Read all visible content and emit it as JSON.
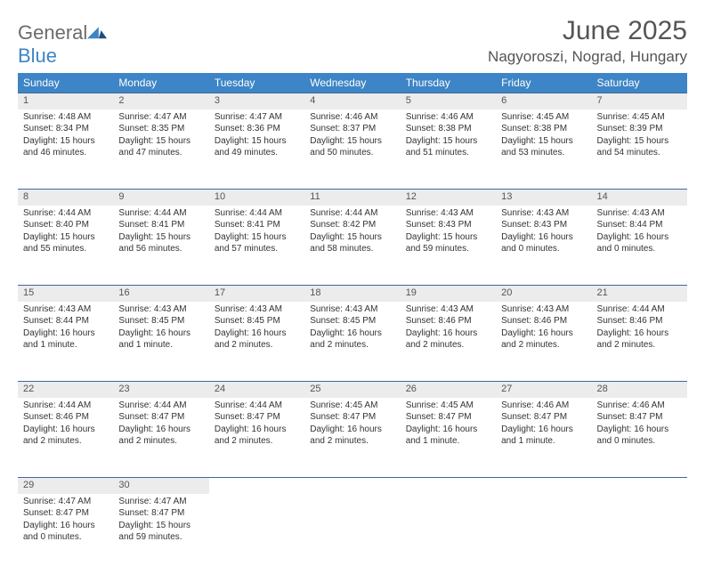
{
  "logo": {
    "line1": "General",
    "line2": "Blue"
  },
  "title": "June 2025",
  "location": "Nagyoroszi, Nograd, Hungary",
  "colors": {
    "header_bg": "#3d85c6",
    "header_text": "#ffffff",
    "daynum_bg": "#ececec",
    "rule": "#3d6a99",
    "text": "#333333",
    "title_text": "#555555"
  },
  "day_headers": [
    "Sunday",
    "Monday",
    "Tuesday",
    "Wednesday",
    "Thursday",
    "Friday",
    "Saturday"
  ],
  "weeks": [
    [
      {
        "n": "1",
        "sr": "Sunrise: 4:48 AM",
        "ss": "Sunset: 8:34 PM",
        "dl": "Daylight: 15 hours and 46 minutes."
      },
      {
        "n": "2",
        "sr": "Sunrise: 4:47 AM",
        "ss": "Sunset: 8:35 PM",
        "dl": "Daylight: 15 hours and 47 minutes."
      },
      {
        "n": "3",
        "sr": "Sunrise: 4:47 AM",
        "ss": "Sunset: 8:36 PM",
        "dl": "Daylight: 15 hours and 49 minutes."
      },
      {
        "n": "4",
        "sr": "Sunrise: 4:46 AM",
        "ss": "Sunset: 8:37 PM",
        "dl": "Daylight: 15 hours and 50 minutes."
      },
      {
        "n": "5",
        "sr": "Sunrise: 4:46 AM",
        "ss": "Sunset: 8:38 PM",
        "dl": "Daylight: 15 hours and 51 minutes."
      },
      {
        "n": "6",
        "sr": "Sunrise: 4:45 AM",
        "ss": "Sunset: 8:38 PM",
        "dl": "Daylight: 15 hours and 53 minutes."
      },
      {
        "n": "7",
        "sr": "Sunrise: 4:45 AM",
        "ss": "Sunset: 8:39 PM",
        "dl": "Daylight: 15 hours and 54 minutes."
      }
    ],
    [
      {
        "n": "8",
        "sr": "Sunrise: 4:44 AM",
        "ss": "Sunset: 8:40 PM",
        "dl": "Daylight: 15 hours and 55 minutes."
      },
      {
        "n": "9",
        "sr": "Sunrise: 4:44 AM",
        "ss": "Sunset: 8:41 PM",
        "dl": "Daylight: 15 hours and 56 minutes."
      },
      {
        "n": "10",
        "sr": "Sunrise: 4:44 AM",
        "ss": "Sunset: 8:41 PM",
        "dl": "Daylight: 15 hours and 57 minutes."
      },
      {
        "n": "11",
        "sr": "Sunrise: 4:44 AM",
        "ss": "Sunset: 8:42 PM",
        "dl": "Daylight: 15 hours and 58 minutes."
      },
      {
        "n": "12",
        "sr": "Sunrise: 4:43 AM",
        "ss": "Sunset: 8:43 PM",
        "dl": "Daylight: 15 hours and 59 minutes."
      },
      {
        "n": "13",
        "sr": "Sunrise: 4:43 AM",
        "ss": "Sunset: 8:43 PM",
        "dl": "Daylight: 16 hours and 0 minutes."
      },
      {
        "n": "14",
        "sr": "Sunrise: 4:43 AM",
        "ss": "Sunset: 8:44 PM",
        "dl": "Daylight: 16 hours and 0 minutes."
      }
    ],
    [
      {
        "n": "15",
        "sr": "Sunrise: 4:43 AM",
        "ss": "Sunset: 8:44 PM",
        "dl": "Daylight: 16 hours and 1 minute."
      },
      {
        "n": "16",
        "sr": "Sunrise: 4:43 AM",
        "ss": "Sunset: 8:45 PM",
        "dl": "Daylight: 16 hours and 1 minute."
      },
      {
        "n": "17",
        "sr": "Sunrise: 4:43 AM",
        "ss": "Sunset: 8:45 PM",
        "dl": "Daylight: 16 hours and 2 minutes."
      },
      {
        "n": "18",
        "sr": "Sunrise: 4:43 AM",
        "ss": "Sunset: 8:45 PM",
        "dl": "Daylight: 16 hours and 2 minutes."
      },
      {
        "n": "19",
        "sr": "Sunrise: 4:43 AM",
        "ss": "Sunset: 8:46 PM",
        "dl": "Daylight: 16 hours and 2 minutes."
      },
      {
        "n": "20",
        "sr": "Sunrise: 4:43 AM",
        "ss": "Sunset: 8:46 PM",
        "dl": "Daylight: 16 hours and 2 minutes."
      },
      {
        "n": "21",
        "sr": "Sunrise: 4:44 AM",
        "ss": "Sunset: 8:46 PM",
        "dl": "Daylight: 16 hours and 2 minutes."
      }
    ],
    [
      {
        "n": "22",
        "sr": "Sunrise: 4:44 AM",
        "ss": "Sunset: 8:46 PM",
        "dl": "Daylight: 16 hours and 2 minutes."
      },
      {
        "n": "23",
        "sr": "Sunrise: 4:44 AM",
        "ss": "Sunset: 8:47 PM",
        "dl": "Daylight: 16 hours and 2 minutes."
      },
      {
        "n": "24",
        "sr": "Sunrise: 4:44 AM",
        "ss": "Sunset: 8:47 PM",
        "dl": "Daylight: 16 hours and 2 minutes."
      },
      {
        "n": "25",
        "sr": "Sunrise: 4:45 AM",
        "ss": "Sunset: 8:47 PM",
        "dl": "Daylight: 16 hours and 2 minutes."
      },
      {
        "n": "26",
        "sr": "Sunrise: 4:45 AM",
        "ss": "Sunset: 8:47 PM",
        "dl": "Daylight: 16 hours and 1 minute."
      },
      {
        "n": "27",
        "sr": "Sunrise: 4:46 AM",
        "ss": "Sunset: 8:47 PM",
        "dl": "Daylight: 16 hours and 1 minute."
      },
      {
        "n": "28",
        "sr": "Sunrise: 4:46 AM",
        "ss": "Sunset: 8:47 PM",
        "dl": "Daylight: 16 hours and 0 minutes."
      }
    ],
    [
      {
        "n": "29",
        "sr": "Sunrise: 4:47 AM",
        "ss": "Sunset: 8:47 PM",
        "dl": "Daylight: 16 hours and 0 minutes."
      },
      {
        "n": "30",
        "sr": "Sunrise: 4:47 AM",
        "ss": "Sunset: 8:47 PM",
        "dl": "Daylight: 15 hours and 59 minutes."
      },
      null,
      null,
      null,
      null,
      null
    ]
  ]
}
